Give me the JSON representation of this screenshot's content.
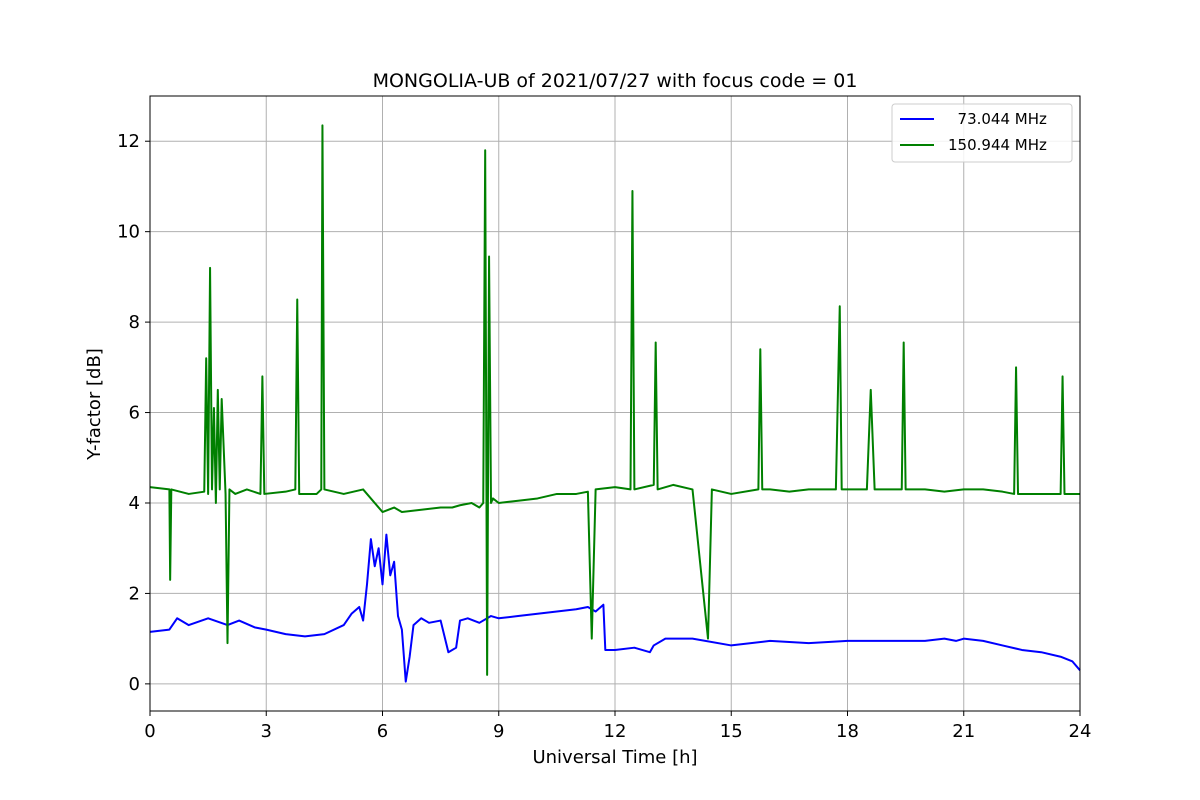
{
  "chart_data": {
    "type": "line",
    "title": "MONGOLIA-UB of 2021/07/27 with focus code = 01",
    "xlabel": "Universal Time [h]",
    "ylabel": "Y-factor [dB]",
    "xlim": [
      0,
      24
    ],
    "ylim": [
      -0.6,
      13.0
    ],
    "xticks": [
      "0",
      "3",
      "6",
      "9",
      "12",
      "15",
      "18",
      "21",
      "24"
    ],
    "yticks": [
      "0",
      "2",
      "4",
      "6",
      "8",
      "10",
      "12"
    ],
    "grid": true,
    "legend_position": "top-right",
    "series": [
      {
        "name": "  73.044 MHz",
        "color": "#0000ff",
        "x": [
          0,
          0.5,
          0.7,
          1.0,
          1.5,
          2.0,
          2.3,
          2.7,
          3.0,
          3.5,
          4.0,
          4.5,
          5.0,
          5.2,
          5.4,
          5.5,
          5.6,
          5.7,
          5.8,
          5.9,
          6.0,
          6.1,
          6.2,
          6.3,
          6.4,
          6.5,
          6.6,
          6.7,
          6.8,
          7.0,
          7.2,
          7.5,
          7.7,
          7.9,
          8.0,
          8.2,
          8.5,
          8.8,
          9.0,
          9.5,
          10.0,
          10.5,
          11.0,
          11.3,
          11.5,
          11.7,
          11.75,
          12.0,
          12.5,
          12.9,
          13.0,
          13.3,
          14.0,
          15.0,
          16.0,
          17.0,
          18.0,
          19.0,
          20.0,
          20.5,
          20.8,
          21.0,
          21.5,
          22.0,
          22.5,
          23.0,
          23.5,
          23.8,
          24.0
        ],
        "y": [
          1.15,
          1.2,
          1.45,
          1.3,
          1.45,
          1.3,
          1.4,
          1.25,
          1.2,
          1.1,
          1.05,
          1.1,
          1.3,
          1.55,
          1.7,
          1.4,
          2.2,
          3.2,
          2.6,
          3.0,
          2.2,
          3.3,
          2.4,
          2.7,
          1.5,
          1.2,
          0.05,
          0.6,
          1.3,
          1.45,
          1.35,
          1.4,
          0.7,
          0.8,
          1.4,
          1.45,
          1.35,
          1.5,
          1.45,
          1.5,
          1.55,
          1.6,
          1.65,
          1.7,
          1.6,
          1.75,
          0.75,
          0.75,
          0.8,
          0.7,
          0.85,
          1.0,
          1.0,
          0.85,
          0.95,
          0.9,
          0.95,
          0.95,
          0.95,
          1.0,
          0.95,
          1.0,
          0.95,
          0.85,
          0.75,
          0.7,
          0.6,
          0.5,
          0.3
        ]
      },
      {
        "name": "150.944 MHz",
        "color": "#008000",
        "x": [
          0,
          0.5,
          0.52,
          0.55,
          1.0,
          1.4,
          1.45,
          1.5,
          1.55,
          1.6,
          1.65,
          1.7,
          1.75,
          1.8,
          1.85,
          1.95,
          2.0,
          2.05,
          2.2,
          2.5,
          2.85,
          2.9,
          2.95,
          3.5,
          3.75,
          3.8,
          3.85,
          4.3,
          4.42,
          4.45,
          4.5,
          5.0,
          5.5,
          6.0,
          6.3,
          6.5,
          7.0,
          7.5,
          7.8,
          8.0,
          8.3,
          8.5,
          8.6,
          8.65,
          8.7,
          8.75,
          8.8,
          8.85,
          9.0,
          9.5,
          10.0,
          10.5,
          11.0,
          11.3,
          11.4,
          11.5,
          12.0,
          12.4,
          12.45,
          12.5,
          13.0,
          13.05,
          13.1,
          13.5,
          14.0,
          14.4,
          14.5,
          15.0,
          15.7,
          15.75,
          15.8,
          16.0,
          16.5,
          17.0,
          17.5,
          17.7,
          17.8,
          17.85,
          18.0,
          18.5,
          18.6,
          18.7,
          19.0,
          19.4,
          19.45,
          19.5,
          20.0,
          20.5,
          21.0,
          21.5,
          22.0,
          22.3,
          22.35,
          22.4,
          23.0,
          23.5,
          23.55,
          23.6,
          24.0
        ],
        "y": [
          4.35,
          4.3,
          2.3,
          4.3,
          4.2,
          4.25,
          7.2,
          4.2,
          9.2,
          4.3,
          6.1,
          4.0,
          6.5,
          4.3,
          6.3,
          4.2,
          0.9,
          4.3,
          4.2,
          4.3,
          4.2,
          6.8,
          4.2,
          4.25,
          4.3,
          8.5,
          4.2,
          4.2,
          4.3,
          12.35,
          4.3,
          4.2,
          4.3,
          3.8,
          3.9,
          3.8,
          3.85,
          3.9,
          3.9,
          3.95,
          4.0,
          3.9,
          4.0,
          11.8,
          0.2,
          9.45,
          4.0,
          4.1,
          4.0,
          4.05,
          4.1,
          4.2,
          4.2,
          4.25,
          1.0,
          4.3,
          4.35,
          4.3,
          10.9,
          4.3,
          4.4,
          7.55,
          4.3,
          4.4,
          4.3,
          1.0,
          4.3,
          4.2,
          4.3,
          7.4,
          4.3,
          4.3,
          4.25,
          4.3,
          4.3,
          4.3,
          8.35,
          4.3,
          4.3,
          4.3,
          6.5,
          4.3,
          4.3,
          4.3,
          7.55,
          4.3,
          4.3,
          4.25,
          4.3,
          4.3,
          4.25,
          4.2,
          7.0,
          4.2,
          4.2,
          4.2,
          6.8,
          4.2,
          4.2
        ]
      }
    ]
  }
}
